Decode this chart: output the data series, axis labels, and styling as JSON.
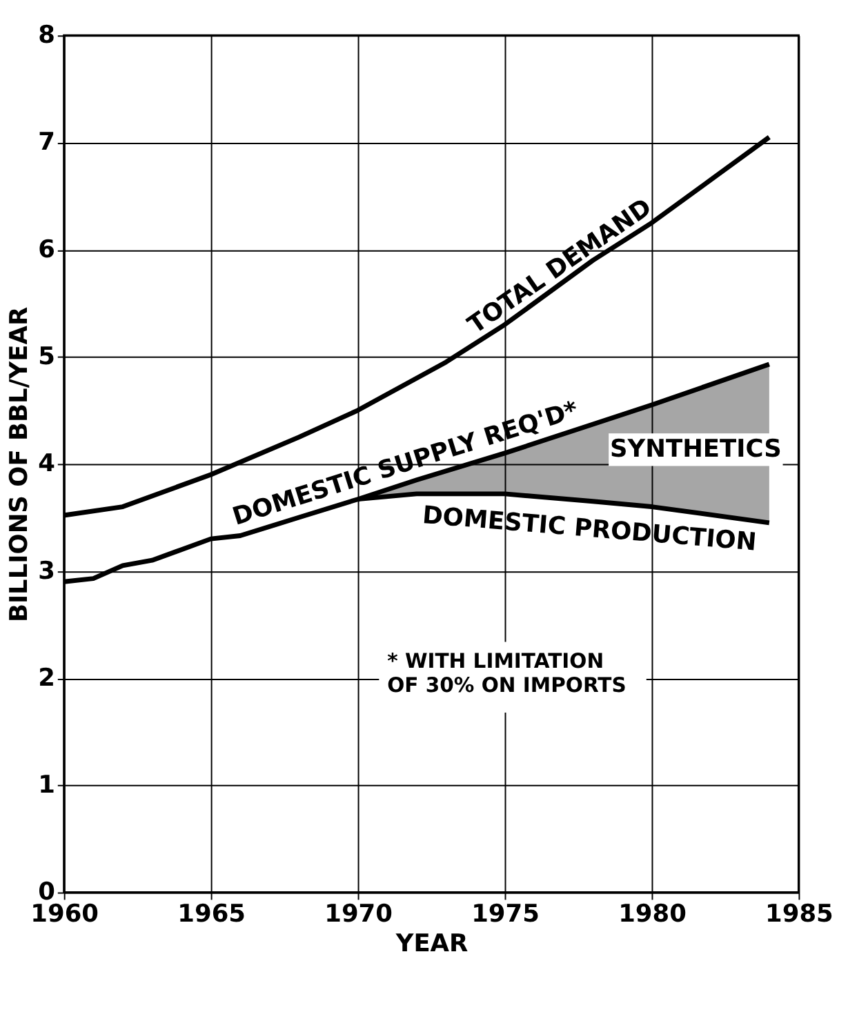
{
  "chart_data": {
    "type": "line",
    "xlabel": "YEAR",
    "ylabel": "BILLIONS OF BBL/YEAR",
    "xlim": [
      1960,
      1985
    ],
    "xticks": [
      1960,
      1965,
      1970,
      1975,
      1980,
      1985
    ],
    "ylim": [
      0,
      8
    ],
    "yticks": [
      0,
      1,
      2,
      3,
      4,
      5,
      6,
      7,
      8
    ],
    "grid": true,
    "legend": false,
    "line_style": "solid",
    "marker": "none",
    "series": [
      {
        "name": "TOTAL DEMAND",
        "color": "#000000",
        "x": [
          1960,
          1962,
          1965,
          1968,
          1970,
          1973,
          1975,
          1978,
          1980,
          1984
        ],
        "values": [
          3.52,
          3.6,
          3.9,
          4.25,
          4.5,
          4.95,
          5.3,
          5.9,
          6.25,
          7.05
        ]
      },
      {
        "name": "DOMESTIC SUPPLY REQ'D*",
        "color": "#000000",
        "x": [
          1960,
          1961,
          1962,
          1963,
          1964,
          1965,
          1966,
          1968,
          1970,
          1972,
          1975,
          1978,
          1980,
          1984
        ],
        "values": [
          2.9,
          2.93,
          3.05,
          3.1,
          3.2,
          3.3,
          3.33,
          3.5,
          3.67,
          3.85,
          4.1,
          4.37,
          4.55,
          4.93
        ]
      },
      {
        "name": "DOMESTIC PRODUCTION",
        "color": "#000000",
        "x": [
          1970,
          1972,
          1975,
          1978,
          1980,
          1984
        ],
        "values": [
          3.67,
          3.72,
          3.72,
          3.65,
          3.6,
          3.45
        ],
        "lower": [
          3.67,
          3.72,
          3.72,
          3.65,
          3.6,
          3.45
        ],
        "upper": [
          3.67,
          3.85,
          4.1,
          4.37,
          4.55,
          4.93
        ]
      }
    ],
    "annotations": [
      "SYNTHETICS",
      "* WITH LIMITATION OF 30% ON IMPORTS"
    ]
  }
}
